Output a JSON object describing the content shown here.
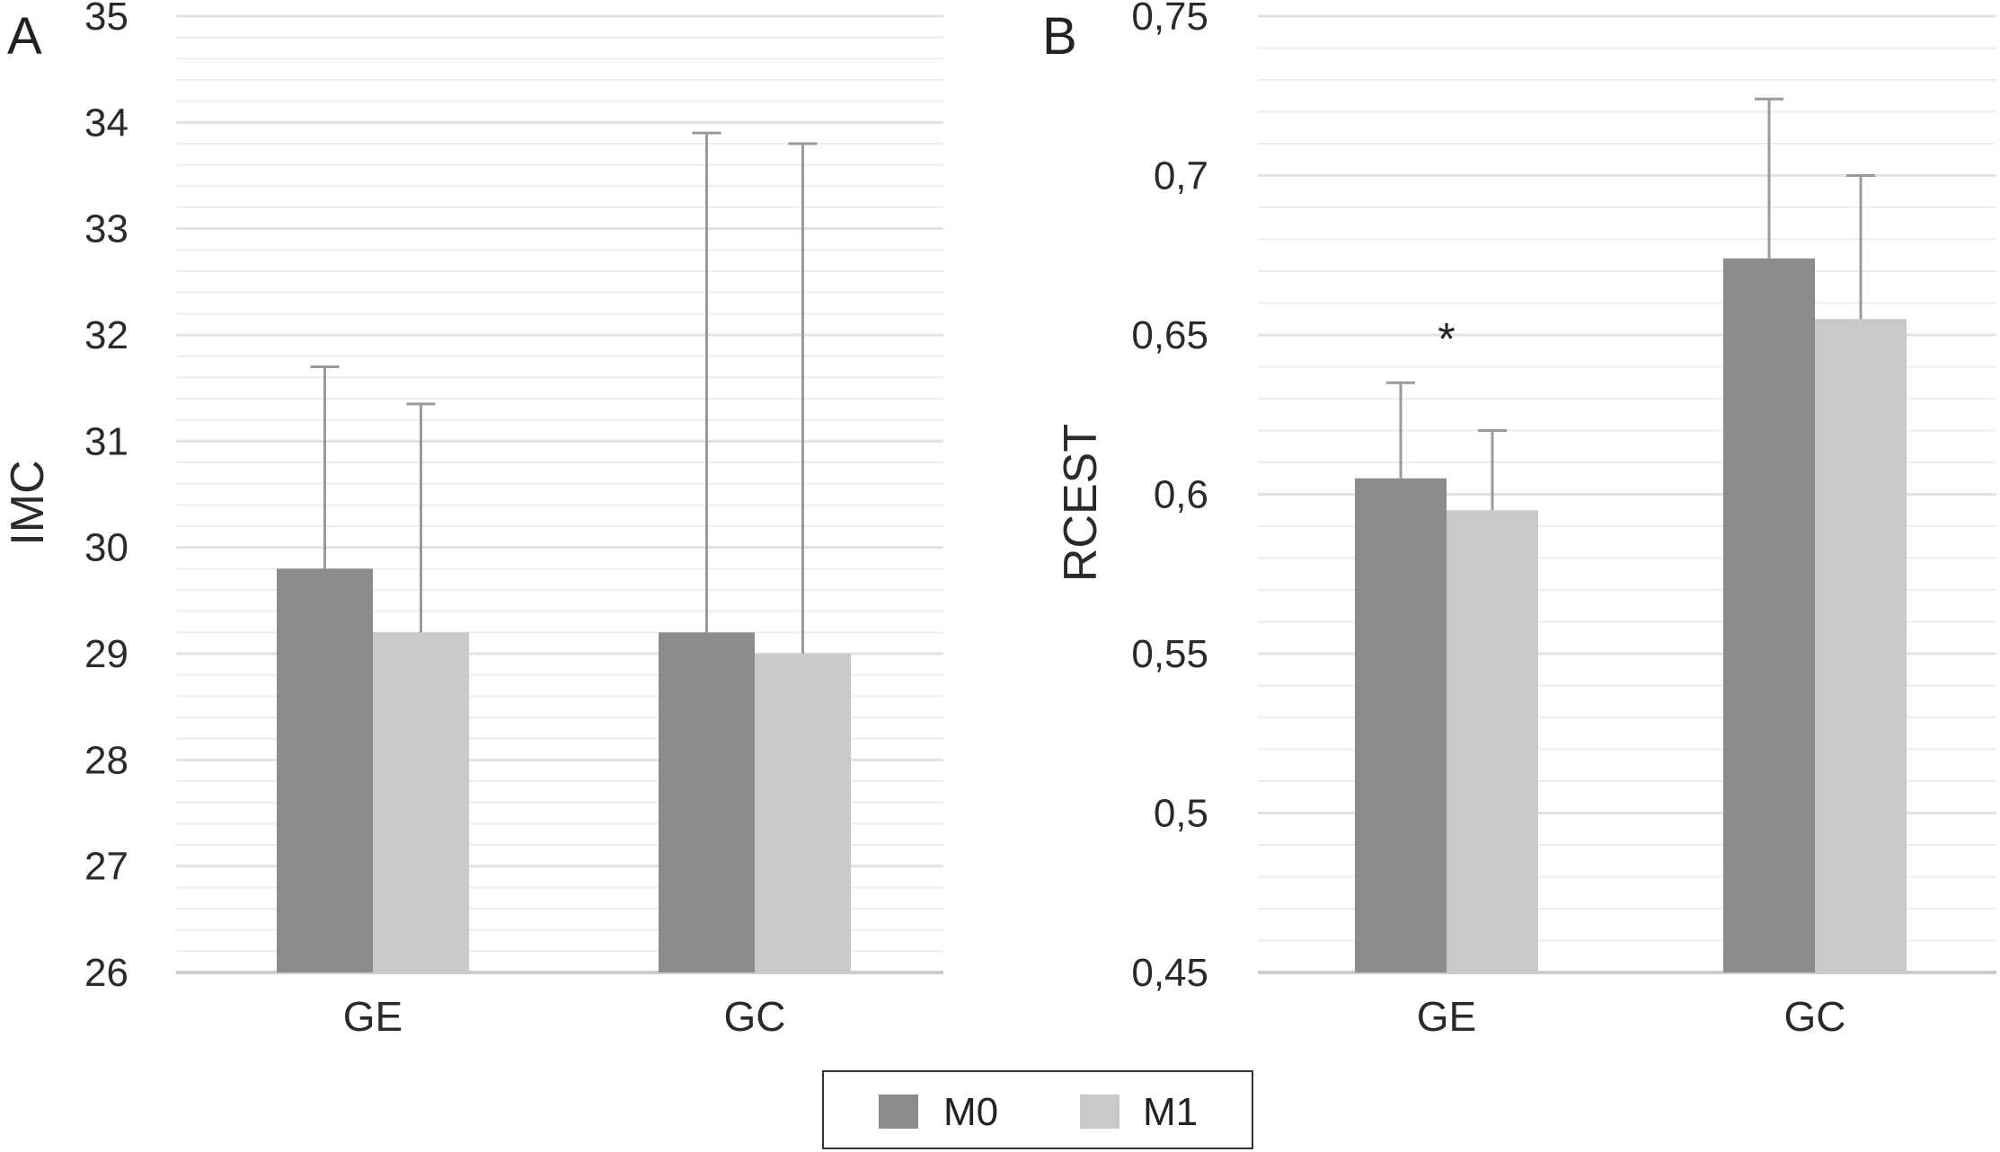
{
  "chart_data": [
    {
      "type": "bar",
      "panel_label": "A",
      "ylabel": "IMC",
      "categories": [
        "GE",
        "GC"
      ],
      "ylim": [
        26,
        35
      ],
      "yticks": [
        26,
        27,
        28,
        29,
        30,
        31,
        32,
        33,
        34,
        35
      ],
      "ytick_labels": [
        "26",
        "27",
        "28",
        "29",
        "30",
        "31",
        "32",
        "33",
        "34",
        "35"
      ],
      "grid": true,
      "series": [
        {
          "name": "M0",
          "values": [
            29.8,
            29.2
          ],
          "error_upper": [
            31.7,
            33.9
          ]
        },
        {
          "name": "M1",
          "values": [
            29.2,
            29.0
          ],
          "error_upper": [
            31.35,
            33.8
          ]
        }
      ],
      "annotations": []
    },
    {
      "type": "bar",
      "panel_label": "B",
      "ylabel": "RCEST",
      "categories": [
        "GE",
        "GC"
      ],
      "ylim": [
        0.45,
        0.75
      ],
      "yticks": [
        0.45,
        0.5,
        0.55,
        0.6,
        0.65,
        0.7,
        0.75
      ],
      "ytick_labels": [
        "0,45",
        "0,5",
        "0,55",
        "0,6",
        "0,65",
        "0,7",
        "0,75"
      ],
      "grid": true,
      "series": [
        {
          "name": "M0",
          "values": [
            0.605,
            0.674
          ],
          "error_upper": [
            0.635,
            0.724
          ]
        },
        {
          "name": "M1",
          "values": [
            0.595,
            0.655
          ],
          "error_upper": [
            0.62,
            0.7
          ]
        }
      ],
      "annotations": [
        {
          "text": "*",
          "category": "GE",
          "value": 0.649
        }
      ]
    }
  ],
  "legend": {
    "placement": "bottom-center",
    "items": [
      {
        "label": "M0",
        "color": "#8a8b8d"
      },
      {
        "label": "M1",
        "color": "#c8c9ca"
      }
    ]
  },
  "colors": {
    "M0": "#8a8b8d",
    "M1": "#c8c9ca",
    "grid": "#e3e3e3",
    "baseline": "#cccccc",
    "error_bar": "#9a9a9a"
  }
}
